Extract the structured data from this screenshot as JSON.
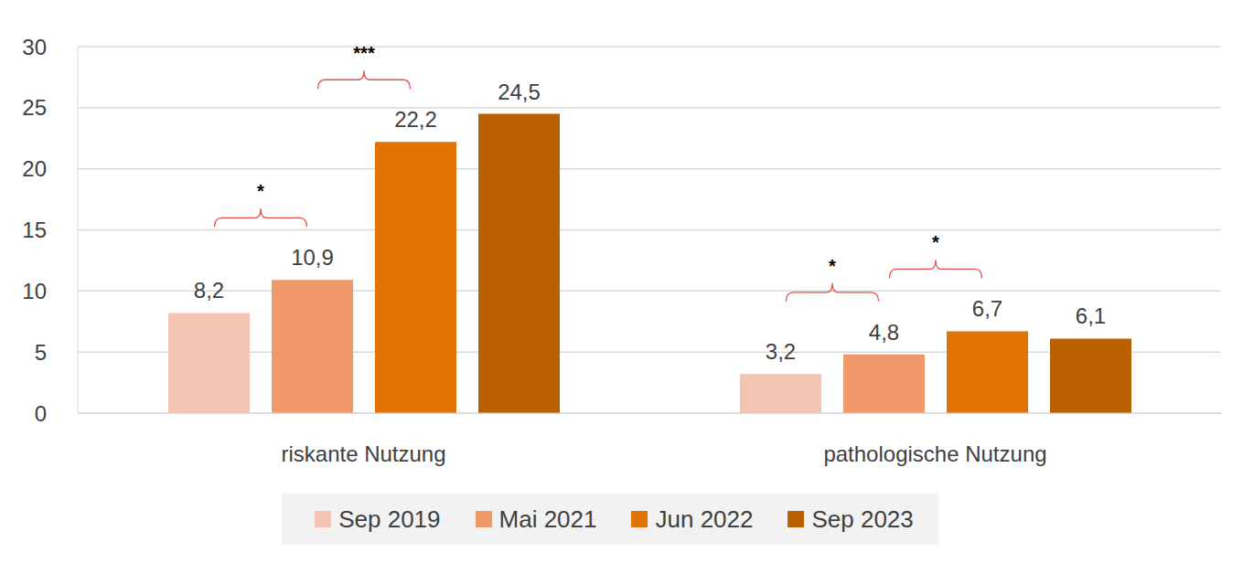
{
  "chart_data": {
    "type": "bar",
    "categories": [
      "riskante Nutzung",
      "pathologische Nutzung"
    ],
    "series": [
      {
        "name": "Sep 2019",
        "color": "#F5C3B1",
        "values": [
          8.2,
          3.2
        ],
        "value_labels": [
          "8,2",
          "3,2"
        ]
      },
      {
        "name": "Mai 2021",
        "color": "#F0996B",
        "values": [
          10.9,
          4.8
        ],
        "value_labels": [
          "10,9",
          "4,8"
        ]
      },
      {
        "name": "Jun 2022",
        "color": "#E07304",
        "values": [
          22.2,
          6.7
        ],
        "value_labels": [
          "22,2",
          "6,7"
        ]
      },
      {
        "name": "Sep 2023",
        "color": "#B96000",
        "values": [
          24.5,
          6.1
        ],
        "value_labels": [
          "24,5",
          "6,1"
        ]
      }
    ],
    "ylim": [
      0,
      30
    ],
    "yticks": [
      0,
      5,
      10,
      15,
      20,
      25,
      30
    ],
    "grid": true,
    "data_labels": true,
    "legend": "bottom",
    "annotations": [
      {
        "text": "*",
        "category": "riskante Nutzung",
        "between": [
          "Sep 2019",
          "Mai 2021"
        ]
      },
      {
        "text": "***",
        "category": "riskante Nutzung",
        "between": [
          "Mai 2021",
          "Jun 2022"
        ]
      },
      {
        "text": "*",
        "category": "pathologische Nutzung",
        "between": [
          "Sep 2019",
          "Mai 2021"
        ]
      },
      {
        "text": "*",
        "category": "pathologische Nutzung",
        "between": [
          "Mai 2021",
          "Jun 2022"
        ]
      }
    ]
  }
}
